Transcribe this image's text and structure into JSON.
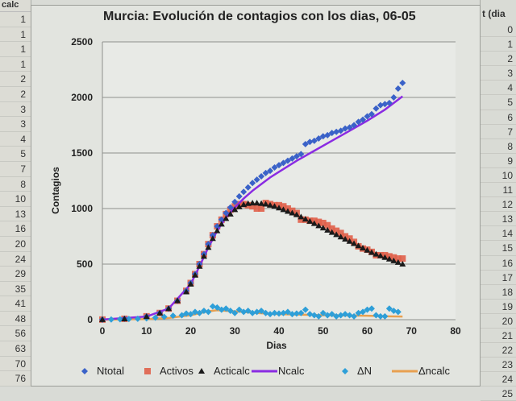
{
  "spreadsheet": {
    "left_column": {
      "header": "calc",
      "values": [
        "1",
        "1",
        "1",
        "1",
        "2",
        "2",
        "3",
        "3",
        "4",
        "5",
        "7",
        "8",
        "10",
        "13",
        "16",
        "20",
        "24",
        "29",
        "35",
        "41",
        "48",
        "56",
        "63",
        "70",
        "76"
      ]
    },
    "right_column": {
      "header": "t (dia",
      "values": [
        "0",
        "1",
        "2",
        "3",
        "4",
        "5",
        "6",
        "7",
        "8",
        "9",
        "10",
        "11",
        "12",
        "13",
        "14",
        "15",
        "16",
        "17",
        "18",
        "19",
        "20",
        "21",
        "22",
        "23",
        "24",
        "25"
      ]
    }
  },
  "chart_data": {
    "type": "scatter",
    "title": "Murcia: Evolución de contagios con los dias, 06-05",
    "xlabel": "Dias",
    "ylabel": "Contagios",
    "xlim": [
      0,
      80
    ],
    "ylim": [
      0,
      2500
    ],
    "xticks": [
      0,
      10,
      20,
      30,
      40,
      50,
      60,
      70,
      80
    ],
    "yticks": [
      0,
      500,
      1000,
      1500,
      2000,
      2500
    ],
    "grid": "horizontal",
    "legend_position": "bottom",
    "series": [
      {
        "name": "Ntotal",
        "marker": "diamond",
        "color": "#3a62c8",
        "x": [
          0,
          5,
          10,
          13,
          15,
          17,
          19,
          20,
          21,
          22,
          23,
          24,
          25,
          26,
          27,
          28,
          29,
          30,
          31,
          32,
          33,
          34,
          35,
          36,
          37,
          38,
          39,
          40,
          41,
          42,
          43,
          44,
          45,
          46,
          47,
          48,
          49,
          50,
          51,
          52,
          53,
          54,
          55,
          56,
          57,
          58,
          59,
          60,
          61,
          62,
          63,
          64,
          65,
          66,
          67,
          68
        ],
        "y": [
          1,
          8,
          30,
          60,
          100,
          170,
          260,
          330,
          410,
          500,
          590,
          680,
          760,
          840,
          900,
          960,
          1010,
          1060,
          1110,
          1150,
          1190,
          1230,
          1260,
          1290,
          1320,
          1340,
          1370,
          1390,
          1410,
          1430,
          1450,
          1470,
          1490,
          1580,
          1600,
          1610,
          1630,
          1650,
          1660,
          1680,
          1690,
          1700,
          1720,
          1730,
          1750,
          1780,
          1800,
          1830,
          1850,
          1900,
          1930,
          1940,
          1950,
          2000,
          2080,
          2130
        ]
      },
      {
        "name": "Activos",
        "marker": "square",
        "color": "#e0604a",
        "x": [
          0,
          5,
          10,
          13,
          15,
          17,
          19,
          20,
          21,
          22,
          23,
          24,
          25,
          26,
          27,
          28,
          29,
          30,
          31,
          32,
          33,
          34,
          35,
          36,
          37,
          38,
          39,
          40,
          41,
          42,
          43,
          44,
          45,
          46,
          47,
          48,
          49,
          50,
          51,
          52,
          53,
          54,
          55,
          56,
          57,
          58,
          59,
          60,
          61,
          62,
          63,
          64,
          65,
          66,
          67,
          68
        ],
        "y": [
          1,
          8,
          30,
          60,
          100,
          170,
          260,
          330,
          410,
          500,
          590,
          680,
          760,
          840,
          900,
          950,
          990,
          1020,
          1040,
          1040,
          1030,
          1020,
          1000,
          1000,
          1050,
          1040,
          1030,
          1030,
          1020,
          1000,
          980,
          960,
          900,
          900,
          890,
          890,
          880,
          870,
          850,
          820,
          800,
          780,
          750,
          730,
          700,
          660,
          640,
          630,
          610,
          580,
          580,
          580,
          570,
          560,
          550,
          550
        ]
      },
      {
        "name": "Acticalc",
        "marker": "triangle",
        "color": "#1a1a1a",
        "x": [
          0,
          5,
          10,
          13,
          15,
          17,
          19,
          20,
          21,
          22,
          23,
          24,
          25,
          26,
          27,
          28,
          29,
          30,
          31,
          32,
          33,
          34,
          35,
          36,
          37,
          38,
          39,
          40,
          41,
          42,
          43,
          44,
          45,
          46,
          47,
          48,
          49,
          50,
          51,
          52,
          53,
          54,
          55,
          56,
          57,
          58,
          59,
          60,
          61,
          62,
          63,
          64,
          65,
          66,
          67,
          68
        ],
        "y": [
          1,
          7,
          28,
          60,
          100,
          170,
          250,
          320,
          400,
          480,
          570,
          650,
          730,
          800,
          860,
          910,
          950,
          990,
          1015,
          1035,
          1045,
          1050,
          1050,
          1045,
          1040,
          1030,
          1020,
          1005,
          990,
          975,
          960,
          945,
          925,
          905,
          885,
          865,
          845,
          825,
          805,
          785,
          765,
          745,
          725,
          705,
          685,
          665,
          645,
          625,
          605,
          590,
          575,
          560,
          545,
          530,
          515,
          500
        ]
      },
      {
        "name": "Ncalc",
        "marker": "line",
        "color": "#8a2be2",
        "x": [
          0,
          10,
          15,
          20,
          22,
          24,
          26,
          28,
          30,
          32,
          34,
          36,
          38,
          40,
          44,
          48,
          52,
          56,
          60,
          64,
          68
        ],
        "y": [
          1,
          28,
          100,
          320,
          480,
          650,
          800,
          920,
          1010,
          1090,
          1160,
          1220,
          1280,
          1330,
          1430,
          1520,
          1610,
          1700,
          1790,
          1890,
          2010
        ]
      },
      {
        "name": "ΔN",
        "marker": "diamond",
        "color": "#2e9fd8",
        "x": [
          0,
          2,
          4,
          6,
          8,
          10,
          12,
          14,
          16,
          18,
          19,
          20,
          21,
          22,
          23,
          24,
          25,
          26,
          27,
          28,
          29,
          30,
          31,
          32,
          33,
          34,
          35,
          36,
          37,
          38,
          39,
          40,
          41,
          42,
          43,
          44,
          45,
          46,
          47,
          48,
          49,
          50,
          51,
          52,
          53,
          54,
          55,
          56,
          57,
          58,
          59,
          60,
          61,
          62,
          63,
          64,
          65,
          66,
          67
        ],
        "y": [
          0,
          2,
          4,
          6,
          8,
          12,
          18,
          25,
          35,
          40,
          55,
          50,
          70,
          60,
          80,
          70,
          120,
          110,
          90,
          100,
          80,
          60,
          90,
          70,
          80,
          60,
          70,
          80,
          60,
          50,
          60,
          55,
          60,
          70,
          50,
          55,
          60,
          90,
          50,
          40,
          30,
          60,
          40,
          50,
          30,
          40,
          50,
          40,
          30,
          60,
          70,
          90,
          100,
          40,
          30,
          30,
          100,
          80,
          70
        ]
      },
      {
        "name": "Δncalc",
        "marker": "line",
        "color": "#e8a050",
        "x": [
          0,
          10,
          15,
          20,
          24,
          26,
          28,
          30,
          35,
          40,
          45,
          50,
          55,
          60,
          65,
          68
        ],
        "y": [
          0,
          5,
          15,
          40,
          75,
          85,
          80,
          75,
          60,
          50,
          45,
          40,
          38,
          35,
          30,
          28
        ]
      }
    ]
  }
}
